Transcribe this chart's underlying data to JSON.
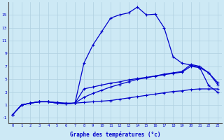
{
  "background_color": "#cde9f5",
  "grid_color": "#b0d0e0",
  "line_color": "#0000cc",
  "xlabel": "Graphe des températures (°c)",
  "xlim": [
    -0.5,
    23.5
  ],
  "ylim": [
    -1.8,
    17.0
  ],
  "yticks": [
    -1,
    1,
    3,
    5,
    7,
    9,
    11,
    13,
    15
  ],
  "xticks": [
    0,
    1,
    2,
    3,
    4,
    5,
    6,
    7,
    8,
    9,
    10,
    11,
    12,
    13,
    14,
    15,
    16,
    17,
    18,
    19,
    20,
    21,
    22,
    23
  ],
  "line1_x": [
    0,
    1,
    2,
    3,
    4,
    5,
    6,
    7,
    8,
    9,
    10,
    11,
    12,
    13,
    14,
    15,
    16,
    17,
    18,
    19,
    20,
    21,
    22,
    23
  ],
  "line1_y": [
    -0.5,
    1.0,
    1.3,
    1.5,
    1.5,
    1.4,
    1.3,
    1.3,
    7.5,
    10.3,
    12.4,
    14.5,
    15.0,
    15.3,
    16.2,
    15.0,
    15.1,
    13.0,
    8.5,
    7.5,
    7.2,
    6.8,
    4.0,
    3.0
  ],
  "line2_x": [
    0,
    1,
    2,
    3,
    4,
    5,
    6,
    7,
    8,
    9,
    10,
    11,
    12,
    13,
    14,
    15,
    16,
    17,
    18,
    19,
    20,
    21,
    22,
    23
  ],
  "line2_y": [
    -0.5,
    1.0,
    1.3,
    1.5,
    1.5,
    1.3,
    1.2,
    1.3,
    1.4,
    1.5,
    1.6,
    1.7,
    1.9,
    2.1,
    2.3,
    2.5,
    2.7,
    2.9,
    3.1,
    3.2,
    3.4,
    3.5,
    3.5,
    3.5
  ],
  "line3_x": [
    0,
    1,
    2,
    3,
    4,
    5,
    6,
    7,
    8,
    9,
    10,
    11,
    12,
    13,
    14,
    15,
    16,
    17,
    18,
    19,
    20,
    21,
    22,
    23
  ],
  "line3_y": [
    -0.5,
    1.0,
    1.3,
    1.5,
    1.5,
    1.3,
    1.2,
    1.3,
    3.5,
    3.8,
    4.1,
    4.4,
    4.6,
    4.9,
    5.1,
    5.3,
    5.5,
    5.7,
    5.9,
    6.1,
    7.0,
    6.8,
    6.0,
    4.2
  ],
  "line4_x": [
    0,
    1,
    2,
    3,
    4,
    5,
    6,
    7,
    8,
    9,
    10,
    11,
    12,
    13,
    14,
    15,
    16,
    17,
    18,
    19,
    20,
    21,
    22,
    23
  ],
  "line4_y": [
    -0.5,
    1.0,
    1.3,
    1.5,
    1.5,
    1.3,
    1.2,
    1.3,
    2.2,
    2.8,
    3.3,
    3.8,
    4.2,
    4.6,
    5.0,
    5.2,
    5.5,
    5.8,
    6.0,
    6.2,
    7.3,
    7.0,
    6.0,
    4.5
  ]
}
